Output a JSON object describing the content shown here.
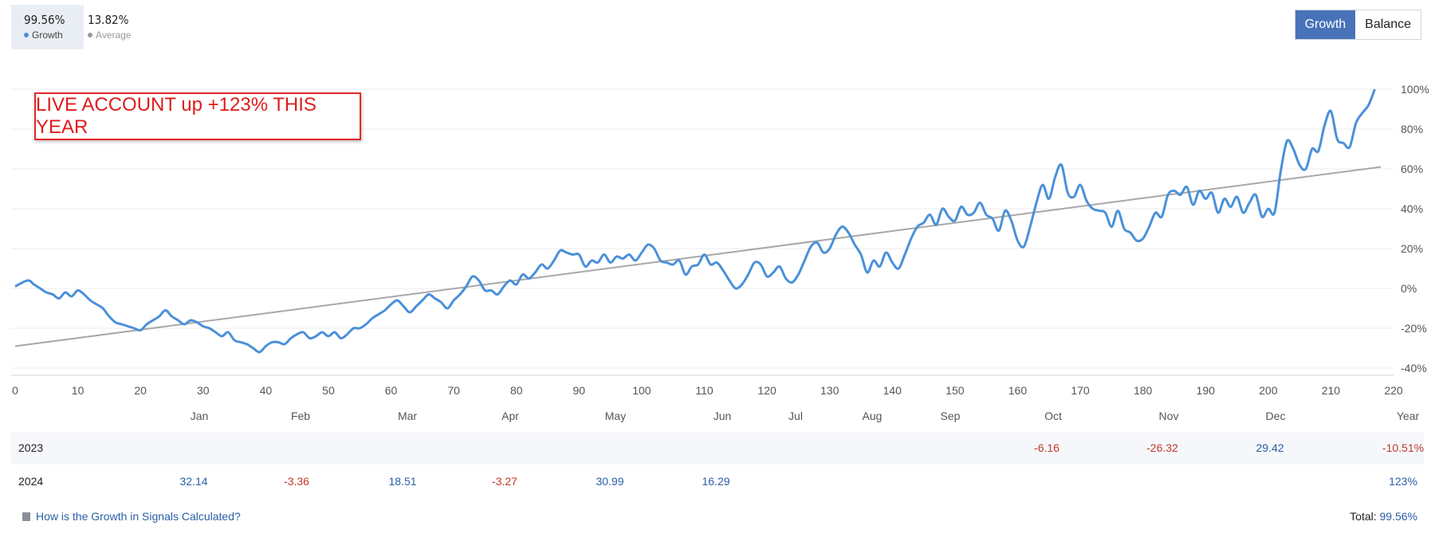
{
  "legend": {
    "growth": {
      "value": "99.56%",
      "label": "Growth",
      "color": "#4a90d9"
    },
    "average": {
      "value": "13.82%",
      "label": "Average",
      "color": "#9a9a9a"
    }
  },
  "toggle": {
    "growth": "Growth",
    "balance": "Balance"
  },
  "annotation": "LIVE ACCOUNT up +123% THIS YEAR",
  "months": [
    "Jan",
    "Feb",
    "Mar",
    "Apr",
    "May",
    "Jun",
    "Jul",
    "Aug",
    "Sep",
    "Oct",
    "Nov",
    "Dec",
    "Year"
  ],
  "years": [
    {
      "year": "2023",
      "cells": [
        "",
        "",
        "",
        "",
        "",
        "",
        "",
        "",
        "",
        "-6.16",
        "-26.32",
        "29.42",
        "-10.51%"
      ]
    },
    {
      "year": "2024",
      "cells": [
        "32.14",
        "-3.36",
        "18.51",
        "-3.27",
        "30.99",
        "16.29",
        "",
        "",
        "",
        "",
        "",
        "",
        "123%"
      ]
    }
  ],
  "footer": {
    "help": "How is the Growth in Signals Calculated?",
    "total_label": "Total:",
    "total_value": "99.56%"
  },
  "chart_data": {
    "type": "line",
    "xlim": [
      0,
      220
    ],
    "ylim": [
      -40,
      100
    ],
    "x_ticks": [
      0,
      10,
      20,
      30,
      40,
      50,
      60,
      70,
      80,
      90,
      100,
      110,
      120,
      130,
      140,
      150,
      160,
      170,
      180,
      190,
      200,
      210,
      220
    ],
    "y_ticks": [
      "100%",
      "80%",
      "60%",
      "40%",
      "20%",
      "0%",
      "-20%",
      "-40%"
    ],
    "y_tick_values": [
      100,
      80,
      60,
      40,
      20,
      0,
      -20,
      -40
    ],
    "series": [
      {
        "name": "Growth",
        "color": "#4a90d9",
        "x": [
          0,
          2,
          3,
          4,
          5,
          6,
          7,
          8,
          9,
          10,
          11,
          12,
          13,
          14,
          15,
          16,
          17,
          18,
          19,
          20,
          21,
          22,
          23,
          24,
          25,
          26,
          27,
          28,
          29,
          30,
          31,
          32,
          33,
          34,
          35,
          36,
          37,
          38,
          39,
          40,
          41,
          42,
          43,
          44,
          45,
          46,
          47,
          48,
          49,
          50,
          51,
          52,
          53,
          54,
          55,
          56,
          57,
          58,
          59,
          60,
          61,
          62,
          63,
          64,
          65,
          66,
          67,
          68,
          69,
          70,
          71,
          72,
          73,
          74,
          75,
          76,
          77,
          78,
          79,
          80,
          81,
          82,
          83,
          84,
          85,
          86,
          87,
          88,
          89,
          90,
          91,
          92,
          93,
          94,
          95,
          96,
          97,
          98,
          99,
          100,
          101,
          102,
          103,
          104,
          105,
          106,
          107,
          108,
          109,
          110,
          111,
          112,
          113,
          114,
          115,
          116,
          117,
          118,
          119,
          120,
          121,
          122,
          123,
          124,
          125,
          126,
          127,
          128,
          129,
          130,
          131,
          132,
          133,
          134,
          135,
          136,
          137,
          138,
          139,
          140,
          141,
          142,
          143,
          144,
          145,
          146,
          147,
          148,
          149,
          150,
          151,
          152,
          153,
          154,
          155,
          156,
          157,
          158,
          159,
          160,
          161,
          162,
          163,
          164,
          165,
          166,
          167,
          168,
          169,
          170,
          171,
          172,
          173,
          174,
          175,
          176,
          177,
          178,
          179,
          180,
          181,
          182,
          183,
          184,
          185,
          186,
          187,
          188,
          189,
          190,
          191,
          192,
          193,
          194,
          195,
          196,
          197,
          198,
          199,
          200,
          201,
          202,
          203,
          204,
          205,
          206,
          207,
          208,
          209,
          210,
          211,
          212,
          213,
          214,
          215,
          216,
          217
        ],
        "y": [
          1,
          4,
          2,
          0,
          -2,
          -3,
          -5,
          -2,
          -4,
          -1,
          -3,
          -6,
          -8,
          -10,
          -14,
          -17,
          -18,
          -19,
          -20,
          -21,
          -18,
          -16,
          -14,
          -11,
          -14,
          -16,
          -18,
          -16,
          -17,
          -19,
          -20,
          -22,
          -24,
          -22,
          -26,
          -27,
          -28,
          -30,
          -32,
          -29,
          -27,
          -27,
          -28,
          -25,
          -23,
          -22,
          -25,
          -24,
          -22,
          -24,
          -22,
          -25,
          -23,
          -20,
          -20,
          -18,
          -15,
          -13,
          -11,
          -8,
          -6,
          -9,
          -12,
          -9,
          -6,
          -3,
          -5,
          -7,
          -10,
          -6,
          -3,
          1,
          6,
          4,
          -1,
          -1,
          -3,
          1,
          4,
          2,
          7,
          5,
          8,
          12,
          10,
          14,
          19,
          18,
          17,
          17,
          11,
          14,
          13,
          17,
          13,
          16,
          15,
          17,
          14,
          18,
          22,
          20,
          14,
          13,
          12,
          14,
          7,
          11,
          12,
          17,
          12,
          13,
          9,
          4,
          0,
          2,
          7,
          13,
          12,
          6,
          8,
          11,
          5,
          3,
          7,
          14,
          21,
          23,
          18,
          20,
          27,
          31,
          28,
          22,
          17,
          8,
          14,
          11,
          18,
          13,
          10,
          17,
          25,
          31,
          33,
          37,
          32,
          40,
          36,
          34,
          41,
          37,
          38,
          43,
          37,
          35,
          29,
          39,
          34,
          24,
          21,
          31,
          43,
          52,
          45,
          56,
          62,
          48,
          46,
          52,
          44,
          40,
          39,
          38,
          31,
          39,
          30,
          28,
          24,
          25,
          31,
          38,
          36,
          47,
          49,
          47,
          51,
          42,
          49,
          45,
          48,
          38,
          45,
          41,
          46,
          38,
          43,
          47,
          36,
          40,
          38,
          59,
          74,
          70,
          62,
          60,
          70,
          69,
          82,
          89,
          75,
          73,
          71,
          83,
          88,
          92,
          100
        ]
      },
      {
        "name": "Average",
        "color": "#a8a8a8",
        "x": [
          0,
          218
        ],
        "y": [
          -29,
          61
        ]
      }
    ]
  }
}
